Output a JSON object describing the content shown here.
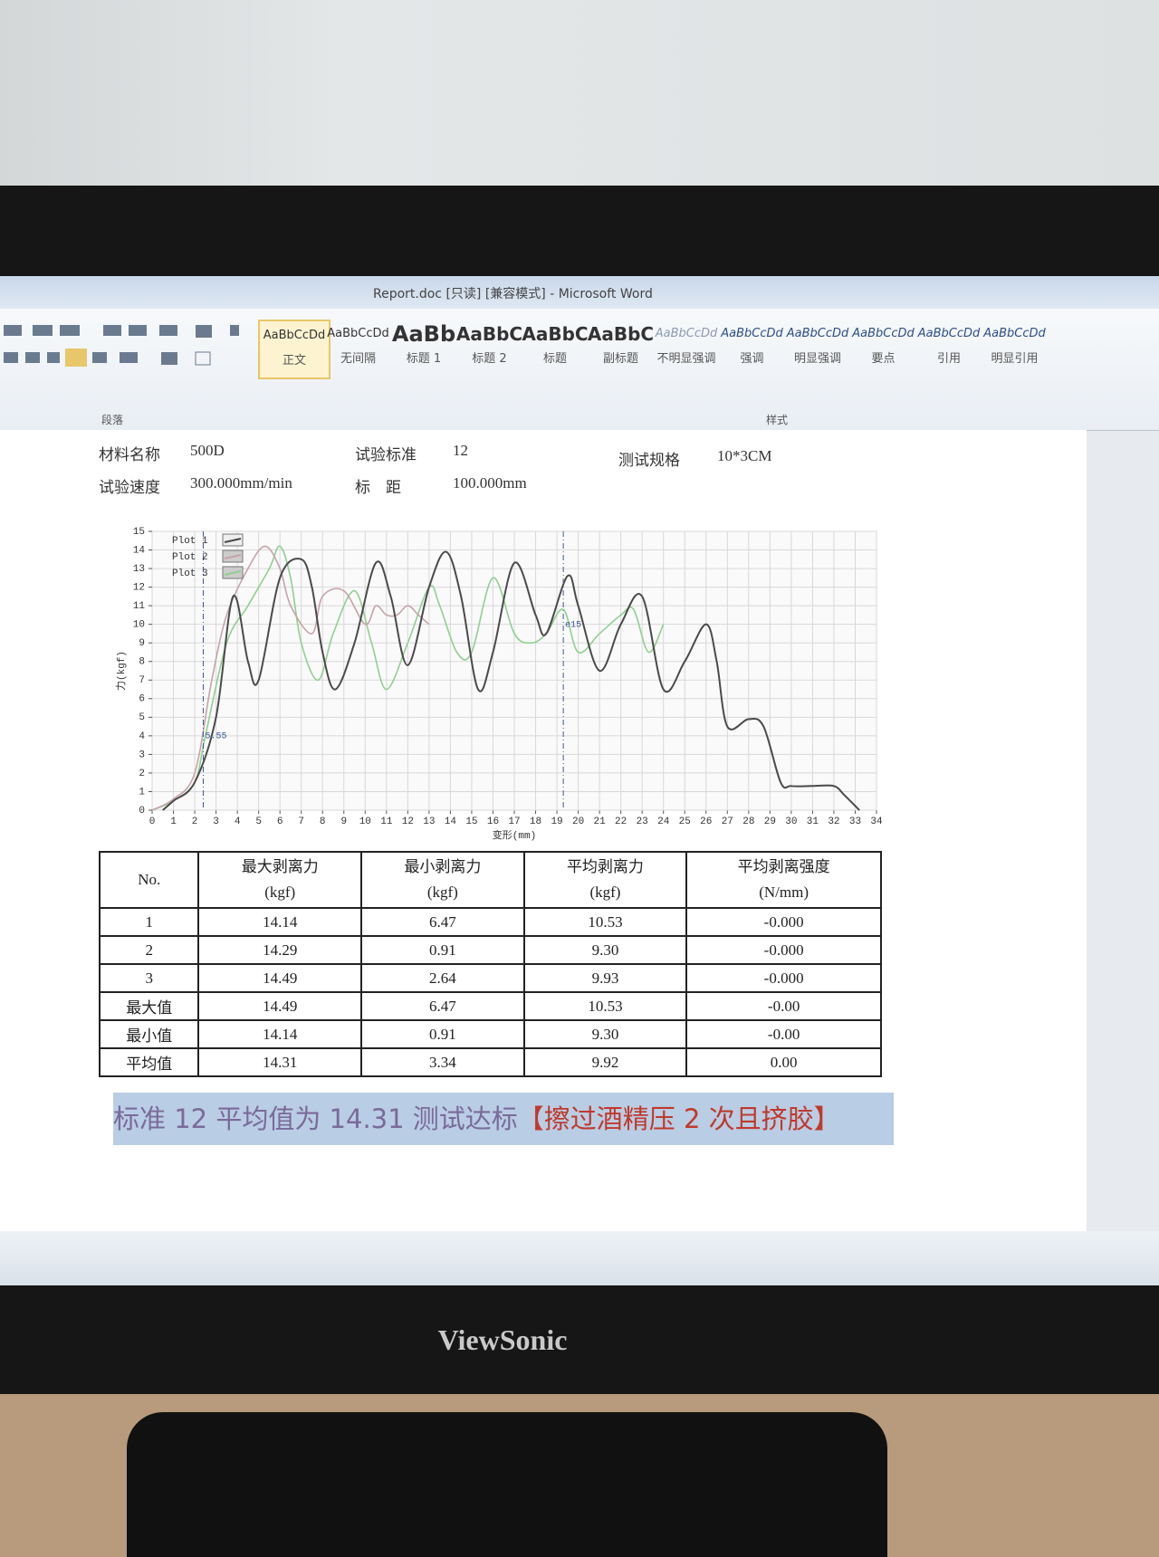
{
  "window": {
    "title": "Report.doc [只读] [兼容模式] - Microsoft Word",
    "brand": "ViewSonic"
  },
  "ribbon": {
    "groups": [
      "段落",
      "样式"
    ],
    "styles": [
      {
        "sample": "AaBbCcDd",
        "name": "正文"
      },
      {
        "sample": "AaBbCcDd",
        "name": "无间隔"
      },
      {
        "sample": "AaBb",
        "name": "标题 1"
      },
      {
        "sample": "AaBbC",
        "name": "标题 2"
      },
      {
        "sample": "AaBbC",
        "name": "标题"
      },
      {
        "sample": "AaBbC",
        "name": "副标题"
      },
      {
        "sample": "AaBbCcDd",
        "name": "不明显强调"
      },
      {
        "sample": "AaBbCcDd",
        "name": "强调"
      },
      {
        "sample": "AaBbCcDd",
        "name": "明显强调"
      },
      {
        "sample": "AaBbCcDd",
        "name": "要点"
      },
      {
        "sample": "AaBbCcDd",
        "name": "引用"
      },
      {
        "sample": "AaBbCcDd",
        "name": "明显引用"
      }
    ]
  },
  "fields": [
    {
      "label": "材料名称",
      "value": "500D"
    },
    {
      "label": "试验标准",
      "value": "12"
    },
    {
      "label": "测试规格",
      "value": "10*3CM"
    },
    {
      "label": "试验速度",
      "value": "300.000mm/min"
    },
    {
      "label": "标　距",
      "value": "100.000mm"
    }
  ],
  "chart_data": {
    "type": "line",
    "x_label": "变形(mm)",
    "y_label": "力(kgf)",
    "xlim": [
      0,
      34
    ],
    "ylim": [
      0,
      15
    ],
    "xticks": [
      0,
      1,
      2,
      3,
      4,
      5,
      6,
      7,
      8,
      9,
      10,
      11,
      12,
      13,
      14,
      15,
      16,
      17,
      18,
      19,
      20,
      21,
      22,
      23,
      24,
      25,
      26,
      27,
      28,
      29,
      30,
      31,
      32,
      33,
      34
    ],
    "yticks": [
      0,
      1,
      2,
      3,
      4,
      5,
      6,
      7,
      8,
      9,
      10,
      11,
      12,
      13,
      14,
      15
    ],
    "grid": true,
    "cursors": [
      {
        "x": 2.4,
        "label": "5.55"
      },
      {
        "x": 19.3,
        "label": "e15"
      }
    ],
    "series": [
      {
        "name": "Plot 1",
        "color": "#4a4a4a",
        "x": [
          0.5,
          1,
          2,
          3,
          3.8,
          4.5,
          5,
          6,
          7,
          7.5,
          8,
          8.6,
          9.5,
          10.5,
          11.2,
          12,
          13,
          13.8,
          14.5,
          15.3,
          16,
          17,
          18,
          18.5,
          19.5,
          20,
          21,
          22,
          23,
          24,
          25,
          26,
          26.5,
          27,
          28,
          28.7,
          29.5,
          30,
          31,
          32,
          32.5,
          33.2
        ],
        "values": [
          0,
          0.5,
          1.5,
          5,
          11.5,
          8,
          7,
          12.5,
          13.5,
          12,
          8.5,
          6.5,
          9,
          13.3,
          11.5,
          7.8,
          12,
          13.9,
          11.5,
          6.5,
          8.5,
          13.3,
          10.5,
          9.5,
          12.6,
          11,
          7.5,
          10,
          11.5,
          6.5,
          8,
          10,
          8,
          4.5,
          4.9,
          4.5,
          1.5,
          1.3,
          1.3,
          1.3,
          0.8,
          0
        ]
      },
      {
        "name": "Plot 2",
        "color": "#c7a3a8",
        "x": [
          0,
          1,
          2,
          2.8,
          3.5,
          4.5,
          5.3,
          6,
          6.5,
          7.5,
          8,
          9,
          10,
          10.5,
          11,
          11.5,
          12,
          12.5,
          13
        ],
        "values": [
          0,
          0.6,
          2,
          7,
          10.5,
          13,
          14.2,
          13,
          11,
          9.5,
          11.5,
          11.8,
          10,
          11,
          10.5,
          10.5,
          11,
          10.5,
          10
        ]
      },
      {
        "name": "Plot 3",
        "color": "#8fd08f",
        "x": [
          0,
          1,
          2,
          2.5,
          3.5,
          4.5,
          5.5,
          6,
          6.5,
          7,
          7.8,
          8.5,
          9.5,
          10.3,
          11,
          12,
          13,
          13.5,
          14.3,
          15,
          16,
          17,
          17.8,
          18.5,
          19.3,
          20,
          21,
          22,
          22.6,
          23.3,
          24
        ],
        "values": [
          0,
          0.5,
          1.5,
          4,
          9,
          11,
          13,
          14.2,
          12.5,
          9,
          7,
          9.5,
          11.8,
          9,
          6.5,
          9,
          12,
          11,
          8.5,
          8.5,
          12.5,
          9.5,
          9,
          9.5,
          10.8,
          8.5,
          9.5,
          10.5,
          10.8,
          8.5,
          10
        ]
      }
    ]
  },
  "table": {
    "header": [
      {
        "title": "No."
      },
      {
        "title": "最大剥离力",
        "unit": "(kgf)"
      },
      {
        "title": "最小剥离力",
        "unit": "(kgf)"
      },
      {
        "title": "平均剥离力",
        "unit": "(kgf)"
      },
      {
        "title": "平均剥离强度",
        "unit": "(N/mm)"
      }
    ],
    "rows": [
      [
        "1",
        "14.14",
        "6.47",
        "10.53",
        "-0.000"
      ],
      [
        "2",
        "14.29",
        "0.91",
        "9.30",
        "-0.000"
      ],
      [
        "3",
        "14.49",
        "2.64",
        "9.93",
        "-0.000"
      ],
      [
        "最大值",
        "14.49",
        "6.47",
        "10.53",
        "-0.00"
      ],
      [
        "最小值",
        "14.14",
        "0.91",
        "9.30",
        "-0.00"
      ],
      [
        "平均值",
        "14.31",
        "3.34",
        "9.92",
        "0.00"
      ]
    ]
  },
  "conclusion": {
    "text": "标准 12 平均值为 14.31 测试达标",
    "note": "【擦过酒精压 2 次且挤胶】"
  }
}
